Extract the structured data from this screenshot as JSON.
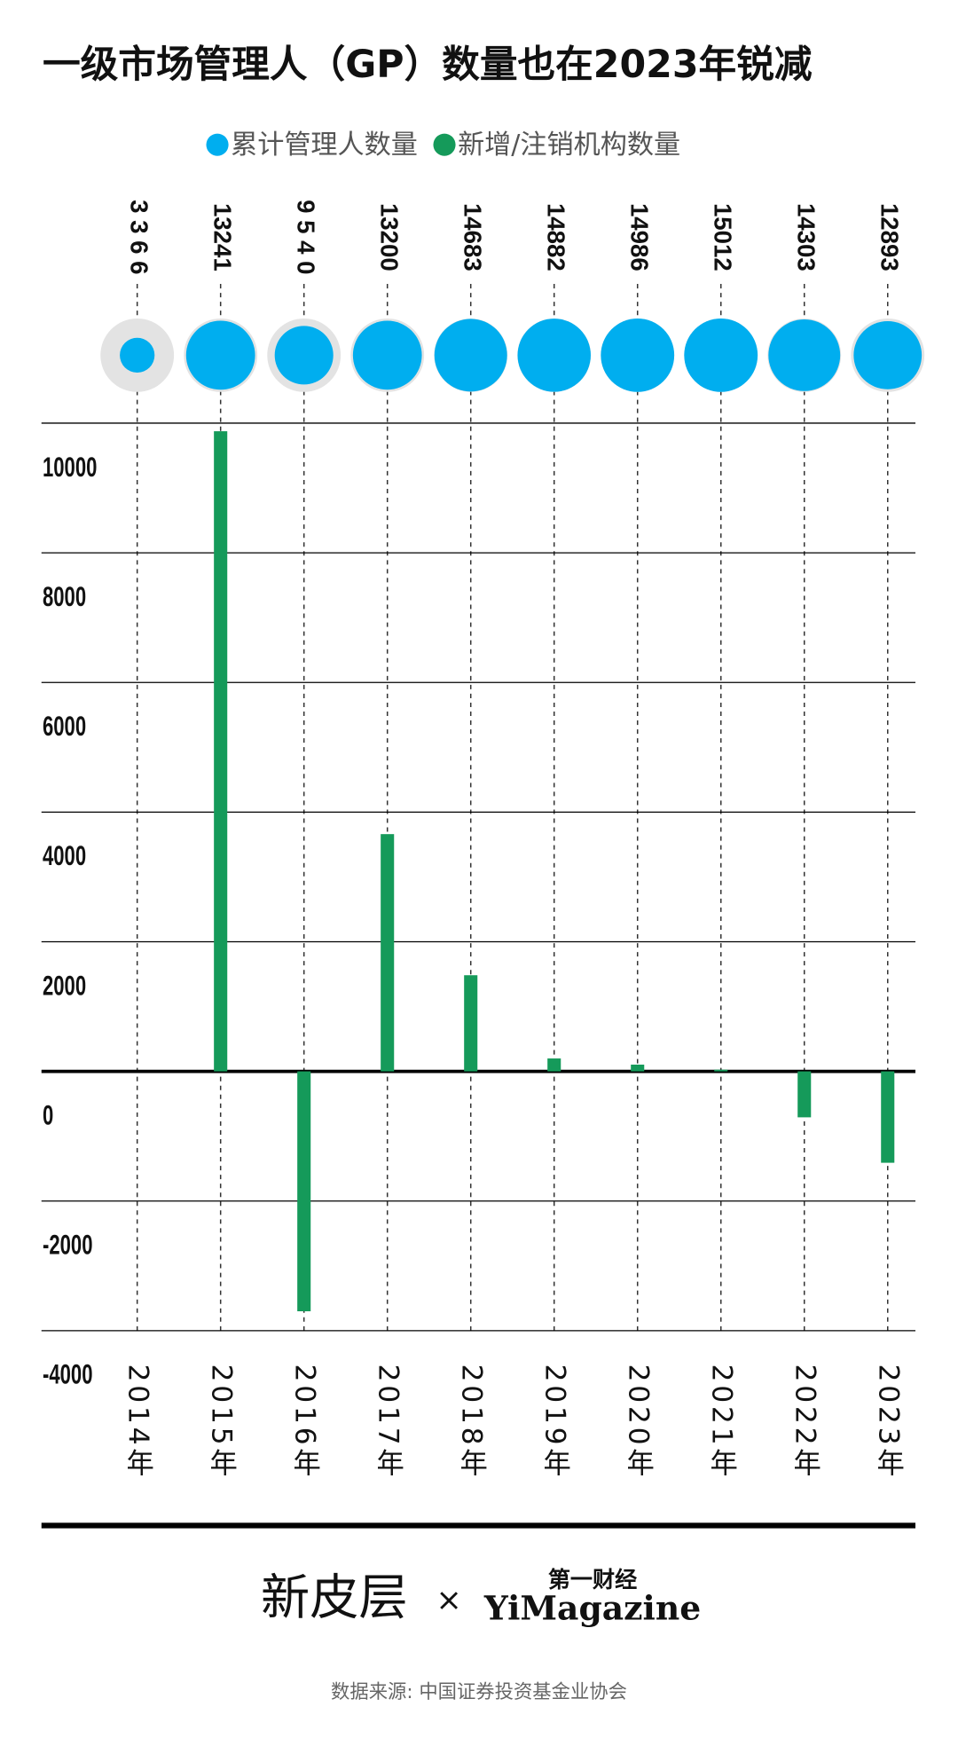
{
  "chart_data": {
    "type": "bar",
    "title": "一级市场管理人（GP）数量也在2023年锐减",
    "categories": [
      "2014年",
      "2015年",
      "2016年",
      "2017年",
      "2018年",
      "2019年",
      "2020年",
      "2021年",
      "2022年",
      "2023年"
    ],
    "series": [
      {
        "name": "累计管理人数量",
        "color": "#00aeef",
        "style": "bubble",
        "values": [
          3366,
          13241,
          9540,
          13200,
          14683,
          14882,
          14986,
          15012,
          14303,
          12893
        ],
        "value_labels": [
          "3 3 6 6",
          "13241",
          "9 5 4 0",
          "13200",
          "14683",
          "14882",
          "14986",
          "15012",
          "14303",
          "12893"
        ]
      },
      {
        "name": "新增/注销机构数量",
        "color": "#159a5a",
        "style": "bar",
        "values": [
          null,
          9875,
          -3701,
          3660,
          1483,
          199,
          104,
          26,
          -709,
          -1410
        ]
      }
    ],
    "ylim": [
      -4000,
      10000
    ],
    "yticks": [
      10000,
      8000,
      6000,
      4000,
      2000,
      0,
      -2000,
      -4000
    ],
    "grid": true,
    "legend": "top",
    "footer": {
      "logo": "新皮层",
      "times": "×",
      "partner_cn": "第一财经",
      "partner_en": "YiMagazine",
      "source": "数据来源: 中国证券投资基金业协会"
    }
  }
}
